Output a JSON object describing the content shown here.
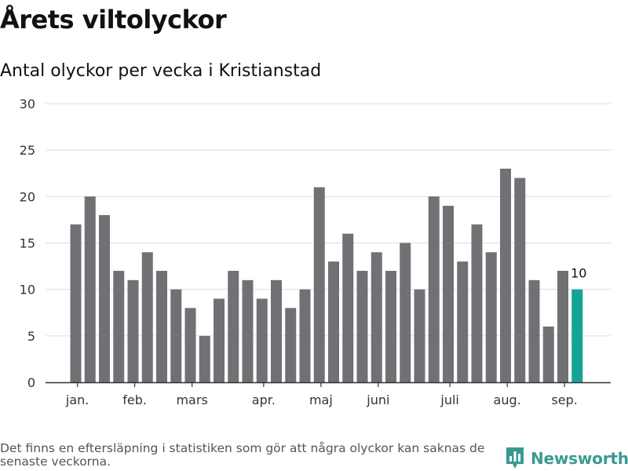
{
  "header": {
    "title": "Årets viltolyckor",
    "subtitle": "Antal olyckor per vecka i Kristianstad"
  },
  "footer": {
    "note": "Det finns en eftersläpning i statistiken som gör att några olyckor kan saknas de senaste veckorna.",
    "brand": "Newsworthy",
    "brand_icon": "bar-chart-logo-icon"
  },
  "colors": {
    "bar": "#717074",
    "highlight": "#14a394",
    "grid": "#dddddd",
    "axis": "#333333",
    "brand": "#3a9a8f"
  },
  "chart_data": {
    "type": "bar",
    "title": "",
    "xlabel": "",
    "ylabel": "",
    "ylim": [
      0,
      30
    ],
    "yticks": [
      0,
      5,
      10,
      15,
      20,
      25,
      30
    ],
    "grid": true,
    "values": [
      17,
      20,
      18,
      12,
      11,
      14,
      12,
      10,
      8,
      5,
      9,
      12,
      11,
      9,
      11,
      8,
      10,
      21,
      13,
      16,
      12,
      14,
      12,
      15,
      10,
      20,
      19,
      13,
      17,
      14,
      23,
      22,
      11,
      6,
      12,
      10
    ],
    "highlight_last": true,
    "last_value_label": "10",
    "month_labels": [
      {
        "label": "jan.",
        "position": 0.5
      },
      {
        "label": "feb.",
        "position": 4.5
      },
      {
        "label": "mars",
        "position": 8.5
      },
      {
        "label": "apr.",
        "position": 13.5
      },
      {
        "label": "maj",
        "position": 17.5
      },
      {
        "label": "juni",
        "position": 21.5
      },
      {
        "label": "juli",
        "position": 26.5
      },
      {
        "label": "aug.",
        "position": 30.5
      },
      {
        "label": "sep.",
        "position": 34.5
      }
    ]
  }
}
